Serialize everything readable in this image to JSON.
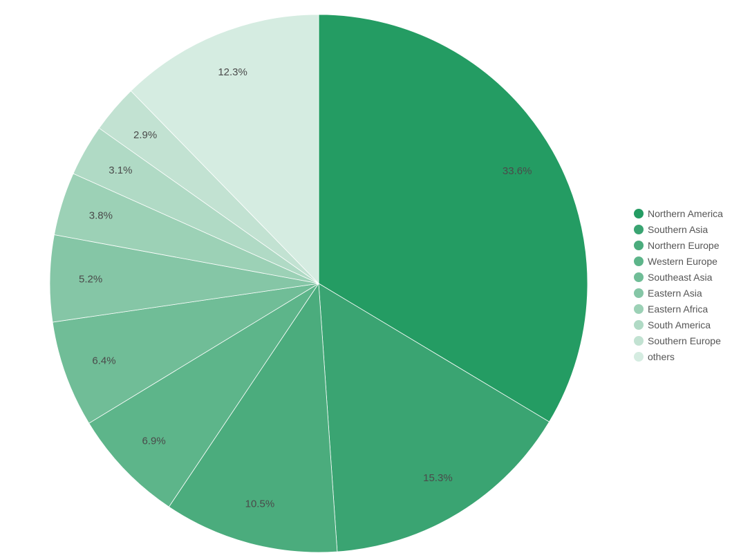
{
  "chart_data": {
    "type": "pie",
    "title": "",
    "start_angle_deg": 0,
    "direction": "clockwise",
    "legend_position": "right",
    "slices": [
      {
        "label": "Northern America",
        "value": 33.6,
        "value_label": "33.6%",
        "color": "#249c63"
      },
      {
        "label": "Southern Asia",
        "value": 15.3,
        "value_label": "15.3%",
        "color": "#3aa472"
      },
      {
        "label": "Northern Europe",
        "value": 10.5,
        "value_label": "10.5%",
        "color": "#4bac7d"
      },
      {
        "label": "Western Europe",
        "value": 6.9,
        "value_label": "6.9%",
        "color": "#5db58a"
      },
      {
        "label": "Southeast Asia",
        "value": 6.4,
        "value_label": "6.4%",
        "color": "#70bd97"
      },
      {
        "label": "Eastern Asia",
        "value": 5.2,
        "value_label": "5.2%",
        "color": "#85c6a6"
      },
      {
        "label": "Eastern Africa",
        "value": 3.8,
        "value_label": "3.8%",
        "color": "#9cd1b6"
      },
      {
        "label": "South America",
        "value": 3.1,
        "value_label": "3.1%",
        "color": "#b0dac5"
      },
      {
        "label": "Southern Europe",
        "value": 2.9,
        "value_label": "2.9%",
        "color": "#c2e2d2"
      },
      {
        "label": "others",
        "value": 12.3,
        "value_label": "12.3%",
        "color": "#d5ece1"
      }
    ]
  }
}
